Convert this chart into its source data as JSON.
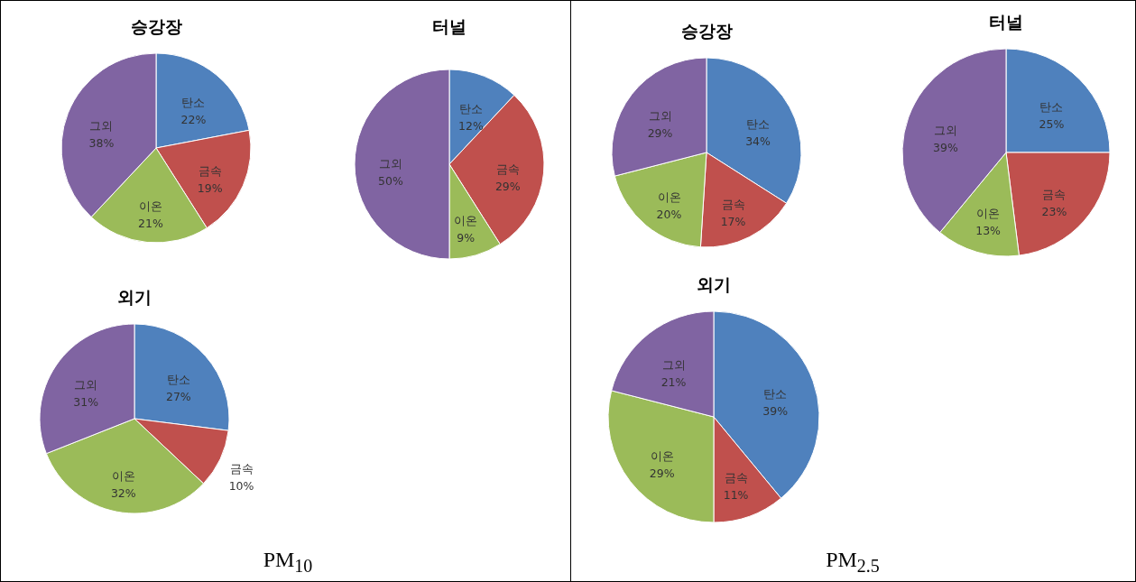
{
  "chart_data": [
    {
      "type": "pie",
      "title": "승강장",
      "categories": [
        "탄소",
        "금속",
        "이온",
        "그외"
      ],
      "values": [
        22,
        19,
        21,
        38
      ],
      "value_labels": [
        "22%",
        "19%",
        "21%",
        "38%"
      ],
      "colors": [
        "#4f81bd",
        "#c0504d",
        "#9bbb59",
        "#8064a2"
      ],
      "legend": false
    },
    {
      "type": "pie",
      "title": "터널",
      "categories": [
        "탄소",
        "금속",
        "이온",
        "그외"
      ],
      "values": [
        12,
        29,
        9,
        50
      ],
      "value_labels": [
        "12%",
        "29%",
        "9%",
        "50%"
      ],
      "colors": [
        "#4f81bd",
        "#c0504d",
        "#9bbb59",
        "#8064a2"
      ],
      "legend": false
    },
    {
      "type": "pie",
      "title": "외기",
      "categories": [
        "탄소",
        "금속",
        "이온",
        "그외"
      ],
      "values": [
        27,
        10,
        32,
        31
      ],
      "value_labels": [
        "27%",
        "10%",
        "32%",
        "31%"
      ],
      "colors": [
        "#4f81bd",
        "#c0504d",
        "#9bbb59",
        "#8064a2"
      ],
      "legend": false,
      "annotations": [
        "PM$_{10}$"
      ]
    },
    {
      "type": "pie",
      "title": "승강장",
      "categories": [
        "탄소",
        "금속",
        "이온",
        "그외"
      ],
      "values": [
        34,
        17,
        20,
        29
      ],
      "value_labels": [
        "34%",
        "17%",
        "20%",
        "29%"
      ],
      "colors": [
        "#4f81bd",
        "#c0504d",
        "#9bbb59",
        "#8064a2"
      ],
      "legend": false
    },
    {
      "type": "pie",
      "title": "터널",
      "categories": [
        "탄소",
        "금속",
        "이온",
        "그외"
      ],
      "values": [
        25,
        23,
        13,
        39
      ],
      "value_labels": [
        "25%",
        "23%",
        "13%",
        "39%"
      ],
      "colors": [
        "#4f81bd",
        "#c0504d",
        "#9bbb59",
        "#8064a2"
      ],
      "legend": false
    },
    {
      "type": "pie",
      "title": "외기",
      "categories": [
        "탄소",
        "금속",
        "이온",
        "그외"
      ],
      "values": [
        39,
        11,
        29,
        21
      ],
      "value_labels": [
        "39%",
        "11%",
        "29%",
        "21%"
      ],
      "colors": [
        "#4f81bd",
        "#c0504d",
        "#9bbb59",
        "#8064a2"
      ],
      "legend": false,
      "annotations": [
        "PM$_{2.5}$"
      ]
    }
  ]
}
